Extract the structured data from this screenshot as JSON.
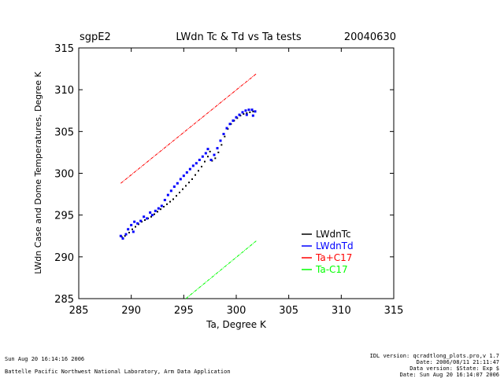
{
  "header": {
    "site": "sgpE2",
    "title": "LWdn Tc & Td vs Ta tests",
    "date": "20040630"
  },
  "chart_data": {
    "type": "scatter",
    "title": "LWdn Tc & Td vs Ta tests",
    "xlabel": "Ta, Degree K",
    "ylabel": "LWdn Case and Dome Temperatures, Degree K",
    "xlim": [
      285,
      315
    ],
    "ylim": [
      285,
      315
    ],
    "xticks": [
      285,
      290,
      295,
      300,
      305,
      310,
      315
    ],
    "yticks": [
      285,
      290,
      295,
      300,
      305,
      310,
      315
    ],
    "grid": false,
    "legend_position": "lower-right",
    "series": [
      {
        "name": "LWdnTc",
        "color": "#000000",
        "marker": "dot",
        "points": [
          [
            289.1,
            292.4
          ],
          [
            289.4,
            292.5
          ],
          [
            289.8,
            292.9
          ],
          [
            290.1,
            293.3
          ],
          [
            290.4,
            293.6
          ],
          [
            290.7,
            293.9
          ],
          [
            291.0,
            294.2
          ],
          [
            291.3,
            294.4
          ],
          [
            291.6,
            294.6
          ],
          [
            291.9,
            294.8
          ],
          [
            292.2,
            295.1
          ],
          [
            292.5,
            295.4
          ],
          [
            292.8,
            295.7
          ],
          [
            293.1,
            296.0
          ],
          [
            293.4,
            296.3
          ],
          [
            293.7,
            296.6
          ],
          [
            294.0,
            296.9
          ],
          [
            294.3,
            297.3
          ],
          [
            294.6,
            297.7
          ],
          [
            294.9,
            298.1
          ],
          [
            295.2,
            298.5
          ],
          [
            295.5,
            298.9
          ],
          [
            295.8,
            299.3
          ],
          [
            296.1,
            299.8
          ],
          [
            296.4,
            300.3
          ],
          [
            296.7,
            300.8
          ],
          [
            297.0,
            301.4
          ],
          [
            297.3,
            302.0
          ],
          [
            297.5,
            302.6
          ],
          [
            297.7,
            301.5
          ],
          [
            298.0,
            301.8
          ],
          [
            298.3,
            302.5
          ],
          [
            298.6,
            303.4
          ],
          [
            298.9,
            304.4
          ],
          [
            299.2,
            305.3
          ],
          [
            299.5,
            305.9
          ],
          [
            299.8,
            306.3
          ],
          [
            300.1,
            306.6
          ],
          [
            300.4,
            306.9
          ],
          [
            300.7,
            307.1
          ],
          [
            301.0,
            307.2
          ],
          [
            301.3,
            307.3
          ],
          [
            301.6,
            307.4
          ],
          [
            301.8,
            307.4
          ]
        ]
      },
      {
        "name": "LWdnTd",
        "color": "#0000ff",
        "marker": "square",
        "points": [
          [
            289.0,
            292.5
          ],
          [
            289.2,
            292.2
          ],
          [
            289.5,
            292.7
          ],
          [
            289.7,
            293.3
          ],
          [
            290.0,
            293.8
          ],
          [
            290.3,
            294.2
          ],
          [
            290.2,
            293.0
          ],
          [
            290.6,
            294.0
          ],
          [
            290.9,
            294.3
          ],
          [
            291.2,
            294.8
          ],
          [
            291.5,
            294.6
          ],
          [
            291.8,
            295.3
          ],
          [
            292.0,
            295.0
          ],
          [
            292.3,
            295.5
          ],
          [
            292.6,
            295.8
          ],
          [
            292.9,
            296.1
          ],
          [
            293.2,
            296.8
          ],
          [
            293.5,
            297.4
          ],
          [
            293.8,
            297.9
          ],
          [
            294.1,
            298.4
          ],
          [
            294.4,
            298.8
          ],
          [
            294.7,
            299.3
          ],
          [
            295.0,
            299.7
          ],
          [
            295.3,
            300.1
          ],
          [
            295.6,
            300.5
          ],
          [
            295.9,
            300.9
          ],
          [
            296.2,
            301.2
          ],
          [
            296.5,
            301.6
          ],
          [
            296.8,
            302.0
          ],
          [
            297.1,
            302.4
          ],
          [
            297.3,
            302.9
          ],
          [
            297.6,
            301.6
          ],
          [
            297.9,
            302.2
          ],
          [
            298.2,
            303.0
          ],
          [
            298.5,
            303.9
          ],
          [
            298.8,
            304.7
          ],
          [
            299.1,
            305.4
          ],
          [
            299.4,
            305.9
          ],
          [
            299.7,
            306.3
          ],
          [
            300.0,
            306.7
          ],
          [
            300.3,
            307.0
          ],
          [
            300.6,
            307.3
          ],
          [
            300.9,
            307.5
          ],
          [
            301.2,
            307.6
          ],
          [
            301.5,
            307.6
          ],
          [
            301.8,
            307.4
          ],
          [
            301.6,
            306.9
          ],
          [
            301.0,
            307.0
          ]
        ]
      },
      {
        "name": "Ta+C17",
        "color": "#ff0000",
        "marker": "line",
        "points": [
          [
            289.0,
            298.8
          ],
          [
            301.9,
            311.9
          ]
        ]
      },
      {
        "name": "Ta-C17",
        "color": "#00ff00",
        "marker": "line",
        "points": [
          [
            295.2,
            285.0
          ],
          [
            301.9,
            291.9
          ]
        ]
      }
    ]
  },
  "footer": {
    "left_line1": "Sun Aug 20 16:14:16 2006",
    "left_line2": "Battelle Pacific Northwest National Laboratory, Arm Data Application",
    "right_lines": [
      "IDL version: qcradtlong_plots.pro,v 1.7",
      "Date: 2006/08/11 21:11:47",
      "Data version: $State: Exp $",
      "Date: Sun Aug 20 16:14:07 2006"
    ]
  }
}
